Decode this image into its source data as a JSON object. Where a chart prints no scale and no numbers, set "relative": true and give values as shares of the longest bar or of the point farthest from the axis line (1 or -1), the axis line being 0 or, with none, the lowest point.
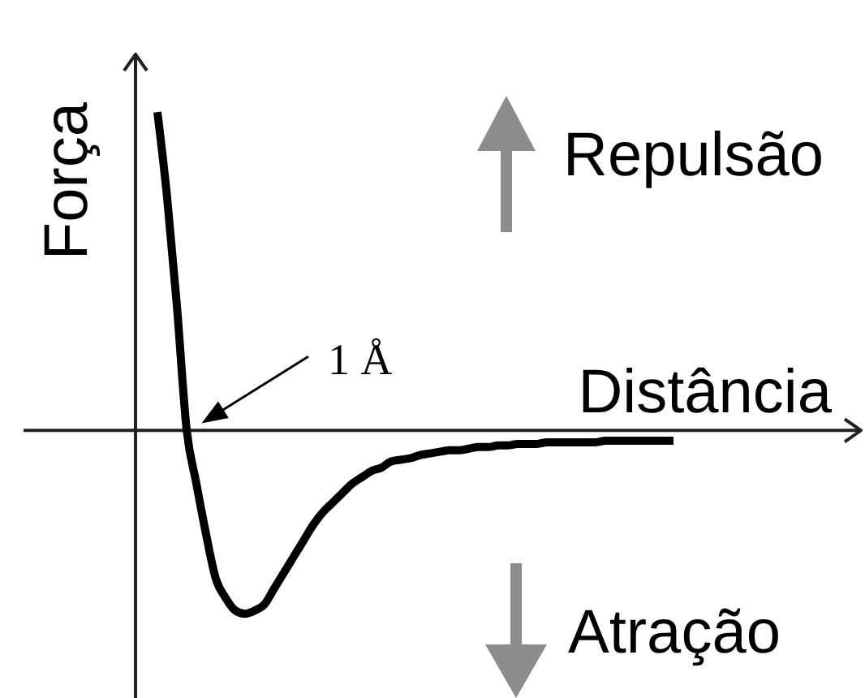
{
  "chart_data": {
    "type": "line",
    "xlabel": "Distância",
    "ylabel": "Força",
    "relative": true,
    "color": "#000000",
    "categories": [
      null,
      null,
      null,
      null,
      null,
      null,
      null,
      null,
      null,
      null,
      null,
      null,
      null,
      null,
      null,
      null,
      null,
      null,
      null,
      null,
      null,
      null,
      null,
      null,
      null,
      null,
      null,
      null,
      null,
      null,
      null,
      null,
      null,
      null,
      null,
      null,
      null,
      null,
      null,
      null,
      null,
      null,
      null,
      null,
      null,
      null,
      null,
      null,
      null,
      null,
      null,
      null,
      null,
      null
    ],
    "values": [
      1.0,
      0.73,
      0.39,
      0.0,
      -0.17,
      -0.33,
      -0.47,
      -0.53,
      -0.57,
      -0.58,
      -0.57,
      -0.55,
      -0.5,
      -0.45,
      -0.4,
      -0.35,
      -0.3,
      -0.26,
      -0.23,
      -0.2,
      -0.17,
      -0.15,
      -0.13,
      -0.12,
      -0.1,
      -0.095,
      -0.09,
      -0.08,
      -0.075,
      -0.07,
      -0.065,
      -0.065,
      -0.06,
      -0.055,
      -0.055,
      -0.05,
      -0.05,
      -0.045,
      -0.045,
      -0.045,
      -0.04,
      -0.04,
      -0.04,
      -0.04,
      -0.04,
      -0.04,
      -0.035,
      -0.035,
      -0.035,
      -0.035,
      -0.035,
      -0.035,
      -0.035,
      -0.035
    ],
    "annotations": [
      "1 Å",
      "Repulsão",
      "Atração"
    ]
  }
}
